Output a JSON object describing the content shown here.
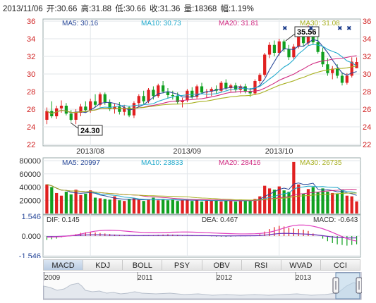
{
  "header": {
    "date": "2013/11/06",
    "open": "开:30.66",
    "high": "高:31.88",
    "low": "低:30.66",
    "close": "收:31.36",
    "volume": "量:18368",
    "change": "幅:1.19%"
  },
  "colors": {
    "up": "#e02020",
    "down": "#10a020",
    "ma5": "#2a4a9a",
    "ma10": "#22aacc",
    "ma20": "#d02880",
    "ma30": "#a8b020",
    "dif": "#6a2ab8",
    "dea": "#e040c0"
  },
  "price_panel": {
    "ma_labels": [
      "MA5: 30.16",
      "MA10: 30.73",
      "MA20: 31.81",
      "MA30: 31.08"
    ],
    "y_ticks": [
      "36",
      "34",
      "32",
      "30",
      "28",
      "26",
      "24",
      "22"
    ],
    "x_labels": [
      "2013/08",
      "2013/09",
      "2013/10"
    ],
    "high_marker": "35.56",
    "low_marker": "24.30"
  },
  "volume_panel": {
    "ma_labels": [
      "MA5: 20997",
      "MA10: 23833",
      "MA20: 28416",
      "MA30: 26735"
    ],
    "y_ticks": [
      "80000",
      "60000",
      "40000",
      "20000"
    ]
  },
  "macd_panel": {
    "dif_label": "DIF: 0.145",
    "dea_label": "DEA: 0.467",
    "macd_label": "MACD: -0.643",
    "y_ticks": [
      "1.546",
      "0.000",
      "-1.546"
    ]
  },
  "tabs": [
    "MACD",
    "KDJ",
    "BOLL",
    "PSY",
    "OBV",
    "RSI",
    "WVAD",
    "CCI"
  ],
  "active_tab": "MACD",
  "navigator": {
    "year_labels": [
      "2009",
      "2011",
      "2012",
      "2013"
    ]
  },
  "chart_data": [
    {
      "type": "candlestick",
      "title": "",
      "ylim": [
        22,
        36
      ],
      "x_labels": [
        "2013/08",
        "2013/09",
        "2013/10"
      ],
      "candles": [
        [
          24.8,
          26.2,
          24.3,
          25.8
        ],
        [
          25.8,
          26.9,
          25.0,
          25.2
        ],
        [
          25.2,
          26.4,
          24.9,
          26.1
        ],
        [
          26.1,
          27.0,
          25.6,
          26.4
        ],
        [
          26.4,
          26.7,
          25.3,
          25.5
        ],
        [
          25.5,
          25.9,
          24.6,
          24.8
        ],
        [
          24.8,
          26.0,
          24.3,
          25.6
        ],
        [
          25.6,
          26.6,
          25.2,
          26.3
        ],
        [
          26.3,
          26.9,
          25.7,
          25.9
        ],
        [
          25.9,
          27.2,
          25.6,
          26.9
        ],
        [
          26.9,
          27.7,
          26.2,
          26.5
        ],
        [
          26.5,
          27.9,
          26.3,
          27.7
        ],
        [
          27.7,
          27.9,
          26.5,
          26.8
        ],
        [
          26.8,
          27.1,
          25.8,
          26.0
        ],
        [
          26.0,
          26.6,
          25.5,
          26.3
        ],
        [
          26.3,
          26.8,
          25.4,
          25.7
        ],
        [
          25.7,
          26.5,
          25.3,
          26.2
        ],
        [
          26.2,
          26.4,
          25.1,
          25.3
        ],
        [
          25.3,
          26.9,
          25.0,
          26.7
        ],
        [
          26.7,
          27.7,
          26.3,
          27.5
        ],
        [
          27.5,
          28.1,
          26.6,
          26.9
        ],
        [
          26.9,
          28.4,
          26.7,
          28.2
        ],
        [
          28.2,
          28.6,
          27.1,
          27.5
        ],
        [
          27.5,
          28.9,
          27.3,
          28.7
        ],
        [
          28.7,
          29.2,
          27.8,
          28.0
        ],
        [
          28.0,
          28.4,
          27.2,
          27.6
        ],
        [
          27.6,
          28.1,
          27.1,
          27.5
        ],
        [
          27.5,
          27.9,
          26.6,
          26.8
        ],
        [
          26.8,
          27.3,
          26.2,
          27.0
        ],
        [
          27.0,
          28.3,
          26.8,
          28.1
        ],
        [
          28.1,
          28.5,
          27.2,
          27.4
        ],
        [
          27.4,
          28.8,
          27.2,
          28.6
        ],
        [
          28.6,
          29.0,
          27.7,
          27.9
        ],
        [
          27.9,
          28.3,
          27.3,
          28.0
        ],
        [
          28.0,
          28.5,
          27.5,
          28.3
        ],
        [
          28.3,
          28.7,
          27.8,
          28.1
        ],
        [
          28.1,
          29.2,
          27.9,
          29.0
        ],
        [
          29.0,
          29.4,
          28.2,
          28.4
        ],
        [
          28.4,
          28.9,
          28.0,
          28.7
        ],
        [
          28.7,
          29.0,
          27.9,
          28.2
        ],
        [
          28.2,
          28.8,
          27.8,
          28.6
        ],
        [
          28.6,
          28.9,
          27.8,
          28.0
        ],
        [
          28.0,
          28.4,
          27.4,
          27.8
        ],
        [
          27.8,
          29.4,
          27.6,
          29.2
        ],
        [
          29.2,
          30.1,
          28.9,
          29.9
        ],
        [
          29.9,
          32.4,
          29.7,
          32.2
        ],
        [
          32.2,
          33.6,
          31.8,
          33.3
        ],
        [
          33.3,
          33.8,
          32.0,
          32.4
        ],
        [
          32.4,
          34.0,
          32.1,
          33.7
        ],
        [
          33.7,
          33.9,
          32.5,
          32.8
        ],
        [
          32.8,
          33.3,
          31.6,
          31.9
        ],
        [
          31.9,
          33.4,
          31.7,
          33.1
        ],
        [
          33.1,
          34.6,
          32.9,
          34.4
        ],
        [
          34.4,
          34.8,
          33.2,
          33.5
        ],
        [
          33.5,
          35.56,
          33.2,
          34.9
        ],
        [
          34.9,
          35.1,
          33.3,
          33.6
        ],
        [
          33.6,
          34.2,
          32.3,
          32.5
        ],
        [
          32.5,
          33.0,
          30.8,
          31.1
        ],
        [
          31.1,
          31.8,
          29.8,
          30.1
        ],
        [
          30.1,
          30.9,
          29.4,
          30.6
        ],
        [
          30.6,
          31.1,
          29.5,
          29.8
        ],
        [
          29.8,
          30.2,
          28.7,
          29.0
        ],
        [
          29.0,
          30.1,
          28.8,
          29.8
        ],
        [
          29.8,
          31.9,
          29.6,
          31.4
        ],
        [
          30.66,
          31.88,
          30.66,
          31.36
        ]
      ],
      "ma_series": [
        {
          "name": "MA5",
          "value": 30.16
        },
        {
          "name": "MA10",
          "value": 30.73
        },
        {
          "name": "MA20",
          "value": 31.81
        },
        {
          "name": "MA30",
          "value": 31.08
        }
      ],
      "annotations": [
        {
          "text": "35.56"
        },
        {
          "text": "24.30"
        }
      ]
    },
    {
      "type": "bar",
      "ylim": [
        0,
        80000
      ],
      "values": [
        44000,
        40000,
        31000,
        27000,
        33000,
        29000,
        36000,
        28000,
        30000,
        35000,
        24000,
        23000,
        22000,
        21000,
        26000,
        20000,
        19000,
        22000,
        23000,
        21000,
        19000,
        21000,
        24000,
        20000,
        22000,
        20000,
        21000,
        19000,
        20000,
        22000,
        19000,
        21000,
        18000,
        20000,
        19000,
        21000,
        18000,
        20000,
        19000,
        18000,
        21000,
        20000,
        19000,
        22000,
        26000,
        42000,
        38000,
        36000,
        41000,
        35000,
        33000,
        78000,
        44000,
        30000,
        37000,
        40000,
        32000,
        38000,
        33000,
        31000,
        30000,
        36000,
        27000,
        26000,
        18368
      ]
    },
    {
      "type": "bar",
      "ylim": [
        -1.546,
        1.546
      ],
      "values": [
        -0.3,
        -0.25,
        -0.2,
        -0.1,
        0.0,
        0.08,
        0.15,
        0.25,
        0.3,
        0.3,
        0.28,
        0.24,
        0.2,
        0.16,
        0.12,
        0.1,
        0.08,
        0.05,
        0.04,
        0.05,
        0.06,
        0.07,
        0.08,
        0.1,
        0.12,
        0.14,
        0.12,
        0.1,
        0.08,
        0.06,
        0.04,
        0.03,
        0.02,
        0.0,
        -0.02,
        -0.04,
        -0.05,
        -0.06,
        -0.05,
        -0.03,
        -0.02,
        -0.01,
        -0.02,
        0.05,
        0.15,
        0.35,
        0.55,
        0.7,
        0.8,
        0.75,
        0.65,
        0.6,
        0.55,
        0.5,
        0.4,
        0.2,
        0.0,
        -0.2,
        -0.4,
        -0.55,
        -0.65,
        -0.7,
        -0.75,
        -0.7,
        -0.643
      ],
      "dif": 0.145,
      "dea": 0.467
    }
  ]
}
